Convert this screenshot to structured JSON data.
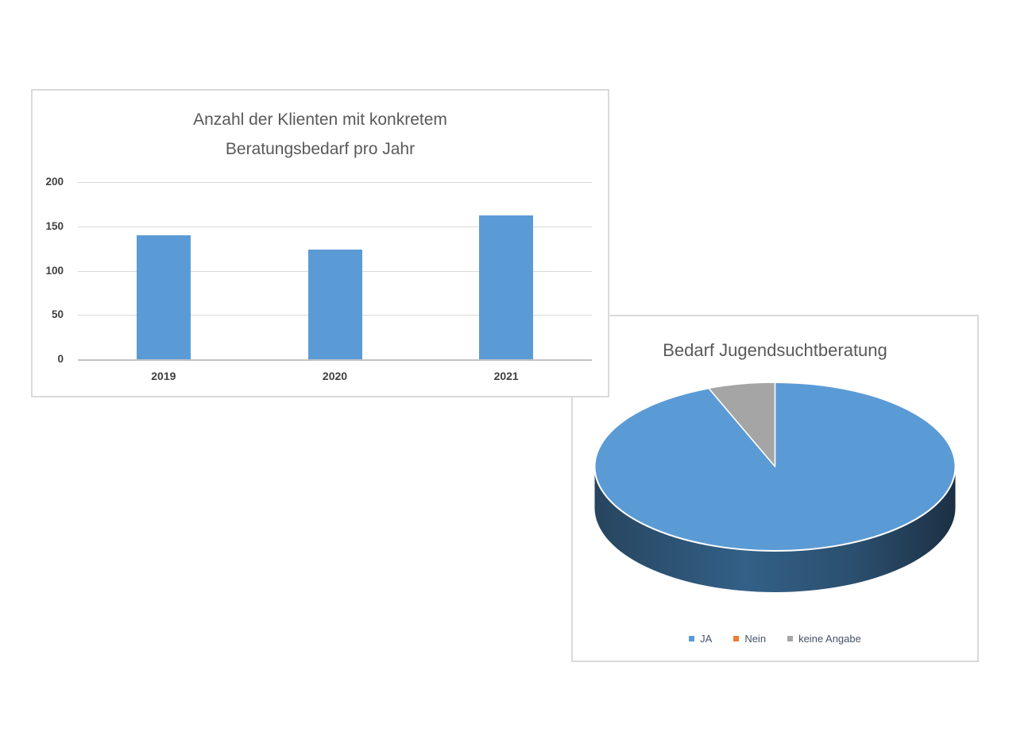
{
  "bar_chart": {
    "title_lines": [
      "Anzahl der Klienten mit konkretem",
      "Beratungsbedarf pro Jahr"
    ]
  },
  "pie_chart": {
    "title": "Bedarf Jugendsuchtberatung"
  },
  "chart_data": [
    {
      "type": "bar",
      "title": "Anzahl der Klienten mit konkretem Beratungsbedarf pro Jahr",
      "categories": [
        "2019",
        "2020",
        "2021"
      ],
      "values": [
        140,
        124,
        162
      ],
      "xlabel": "",
      "ylabel": "",
      "ylim": [
        0,
        200
      ],
      "yticks": [
        0,
        50,
        100,
        150,
        200
      ],
      "grid": true,
      "bar_color": "#5B9BD5"
    },
    {
      "type": "pie",
      "title": "Bedarf Jugendsuchtberatung",
      "style": "3d",
      "labels": [
        "JA",
        "Nein",
        "keine Angabe"
      ],
      "values_percent": [
        94,
        0,
        6
      ],
      "colors": [
        "#5B9BD5",
        "#ED7D31",
        "#A5A5A5"
      ],
      "legend_position": "bottom"
    }
  ],
  "colors": {
    "panel_border": "#dadada",
    "gridline": "#d9d9d9",
    "title_text": "#595959",
    "axis_text": "#404040",
    "legend_text": "#44546a"
  }
}
